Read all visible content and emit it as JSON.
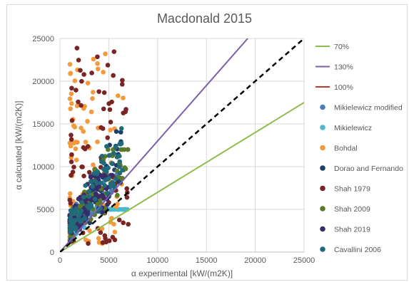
{
  "chart_data": {
    "type": "scatter",
    "title": "Macdonald 2015",
    "xlabel": "α experimental [kW/(m2K)]",
    "ylabel": "α calcuated [kW/(m2K)]",
    "xlim": [
      0,
      25000
    ],
    "ylim": [
      0,
      25000
    ],
    "xticks": [
      0,
      5000,
      10000,
      15000,
      20000,
      25000
    ],
    "yticks": [
      0,
      5000,
      10000,
      15000,
      20000,
      25000
    ],
    "grid": "both",
    "legend_position": "right",
    "reference_lines": [
      {
        "name": "70%",
        "slope": 0.7,
        "color": "#8fbc4a",
        "style": "solid"
      },
      {
        "name": "130%",
        "slope": 1.3,
        "color": "#7b5fad",
        "style": "solid"
      },
      {
        "name": "100%",
        "slope": 1.0,
        "color": "#c0392b",
        "style": "solid",
        "drawn_as": {
          "color": "#000000",
          "style": "dashed"
        }
      }
    ],
    "series": [
      {
        "name": "Mikielewicz modified",
        "color": "#4a7ebb",
        "x_range": [
          1000,
          6000
        ],
        "y_range": [
          500,
          9000
        ]
      },
      {
        "name": "Mikielewicz",
        "color": "#4bb8d0",
        "x_range": [
          1000,
          7000
        ],
        "y_range": [
          300,
          5000
        ]
      },
      {
        "name": "Bohdal",
        "color": "#f59a3c",
        "x_range": [
          1000,
          6500
        ],
        "y_range": [
          1000,
          24500
        ]
      },
      {
        "name": "Dorao and Fernando",
        "color": "#1f3f6b",
        "x_range": [
          1000,
          6500
        ],
        "y_range": [
          1000,
          21000
        ]
      },
      {
        "name": "Shah 1979",
        "color": "#7a2424",
        "x_range": [
          1000,
          7000
        ],
        "y_range": [
          1000,
          24000
        ]
      },
      {
        "name": "Shah 2009",
        "color": "#5a7a2a",
        "x_range": [
          1000,
          7000
        ],
        "y_range": [
          1000,
          12000
        ]
      },
      {
        "name": "Shah 2019",
        "color": "#3a2a6a",
        "x_range": [
          1000,
          5500
        ],
        "y_range": [
          1000,
          9000
        ]
      },
      {
        "name": "Cavallini 2006",
        "color": "#206a7a",
        "x_range": [
          1000,
          6500
        ],
        "y_range": [
          1000,
          16000
        ]
      }
    ]
  }
}
